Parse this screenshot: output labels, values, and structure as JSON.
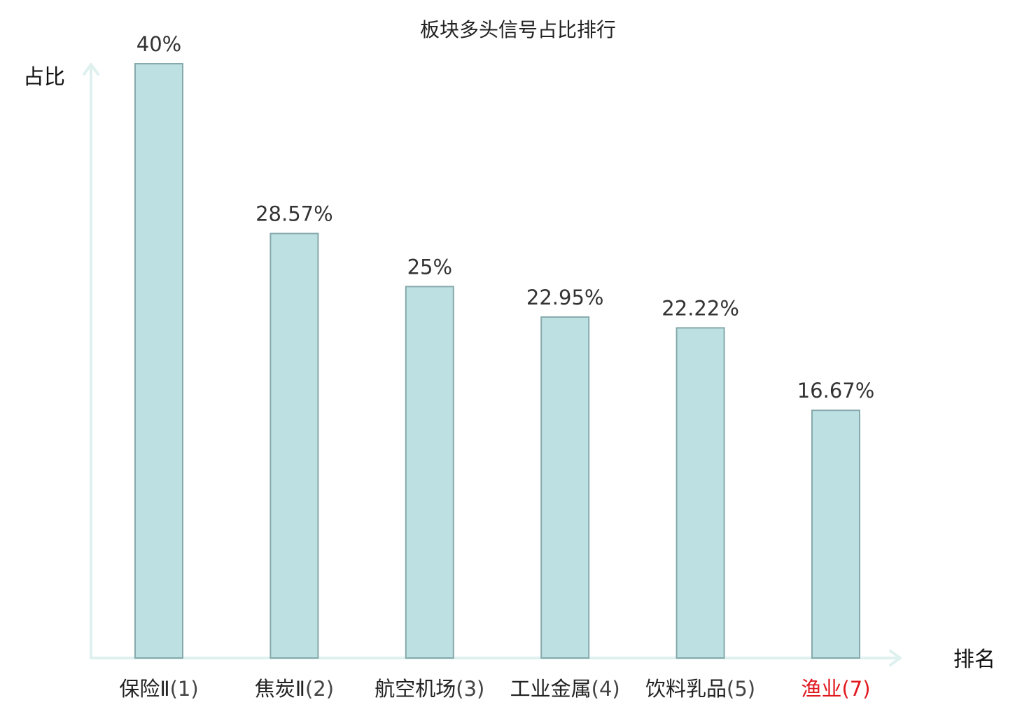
{
  "chart_data": {
    "type": "bar",
    "title": "板块多头信号占比排行",
    "ylabel": "占比",
    "xlabel": "排名",
    "ylim": [
      0,
      40
    ],
    "grid": false,
    "legend": "none",
    "categories": [
      {
        "name": "保险Ⅱ",
        "rank": "(1)",
        "highlight": false
      },
      {
        "name": "焦炭Ⅱ",
        "rank": "(2)",
        "highlight": false
      },
      {
        "name": "航空机场",
        "rank": "(3)",
        "highlight": false
      },
      {
        "name": "工业金属",
        "rank": "(4)",
        "highlight": false
      },
      {
        "name": "饮料乳品",
        "rank": "(5)",
        "highlight": false
      },
      {
        "name": "渔业",
        "rank": "(7)",
        "highlight": true
      }
    ],
    "values": [
      40,
      28.57,
      25,
      22.95,
      22.22,
      16.67
    ],
    "value_labels": [
      "40%",
      "28.57%",
      "25%",
      "22.95%",
      "22.22%",
      "16.67%"
    ],
    "colors": {
      "bar_fill": "#bde0e2",
      "bar_stroke": "#86a9ab",
      "axis": "#def1ef",
      "label_text": "#222222",
      "rank_text": "#444444",
      "value_text": "#333333",
      "highlight": "#e0191f"
    }
  }
}
